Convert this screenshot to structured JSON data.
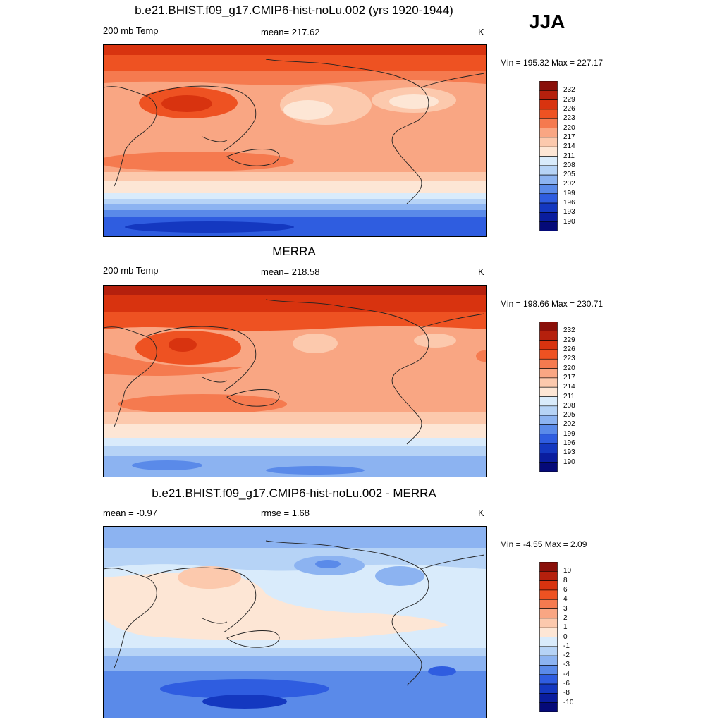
{
  "season": "JJA",
  "panels": [
    {
      "title": "b.e21.BHIST.f09_g17.CMIP6-hist-noLu.002 (yrs 1920-1944)",
      "left": "200 mb Temp",
      "center": "mean= 217.62",
      "units": "K",
      "minmax": "Min = 195.32 Max = 227.17"
    },
    {
      "title": "MERRA",
      "left": "200 mb Temp",
      "center": "mean= 218.58",
      "units": "K",
      "minmax": "Min = 198.66 Max = 230.71"
    },
    {
      "title": "b.e21.BHIST.f09_g17.CMIP6-hist-noLu.002 - MERRA",
      "left": "mean =  -0.97",
      "center": "rmse =   1.68",
      "units": "K",
      "minmax": "Min =  -4.55 Max =   2.09"
    }
  ],
  "colorbars": {
    "temp": {
      "labels": [
        "232",
        "229",
        "226",
        "223",
        "220",
        "217",
        "214",
        "211",
        "208",
        "205",
        "202",
        "199",
        "196",
        "193",
        "190"
      ],
      "colors": [
        "#8a0f09",
        "#b5200d",
        "#d8330f",
        "#ee5222",
        "#f57a4f",
        "#f9a683",
        "#fcc9ad",
        "#fde6d5",
        "#d9ebfb",
        "#b6d3f6",
        "#8cb3f1",
        "#5a8ae9",
        "#2f5de0",
        "#1438c0",
        "#0a1d9e",
        "#050a78"
      ]
    },
    "diff": {
      "labels": [
        "10",
        "8",
        "6",
        "4",
        "3",
        "2",
        "1",
        "0",
        "-1",
        "-2",
        "-3",
        "-4",
        "-6",
        "-8",
        "-10"
      ],
      "colors": [
        "#8a0f09",
        "#b5200d",
        "#d8330f",
        "#ee5222",
        "#f57a4f",
        "#f9a683",
        "#fcc9ad",
        "#fde6d5",
        "#d9ebfb",
        "#b6d3f6",
        "#8cb3f1",
        "#5a8ae9",
        "#2f5de0",
        "#1438c0",
        "#0a1d9e",
        "#050a78"
      ]
    }
  }
}
